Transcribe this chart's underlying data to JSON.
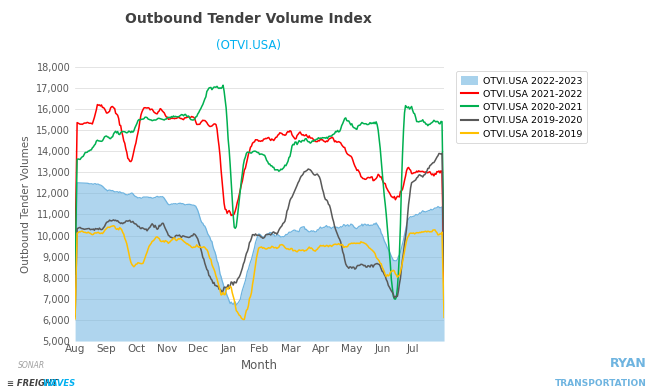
{
  "title": "Outbound Tender Volume Index",
  "subtitle": "(OTVI.USA)",
  "xlabel": "Month",
  "ylabel": "Outbound Tender Volumes",
  "ylim": [
    5000,
    18000
  ],
  "yticks": [
    5000,
    6000,
    7000,
    8000,
    9000,
    10000,
    11000,
    12000,
    13000,
    14000,
    15000,
    16000,
    17000,
    18000
  ],
  "month_labels": [
    "Aug",
    "Sep",
    "Oct",
    "Nov",
    "Dec",
    "Jan",
    "Feb",
    "Mar",
    "Apr",
    "May",
    "Jun",
    "Jul"
  ],
  "colors": {
    "2022_2023": "#6EB4E0",
    "2021_2022": "#FF0000",
    "2020_2021": "#00B050",
    "2019_2020": "#595959",
    "2018_2019": "#FFC000"
  },
  "legend_labels": [
    "OTVI.USA 2022-2023",
    "OTVI.USA 2021-2022",
    "OTVI.USA 2020-2021",
    "OTVI.USA 2019-2020",
    "OTVI.USA 2018-2019"
  ],
  "background_color": "#FFFFFF",
  "grid_color": "#D9D9D9",
  "title_color": "#404040",
  "subtitle_color": "#00B0F0",
  "axis_label_color": "#595959",
  "tick_color": "#595959"
}
